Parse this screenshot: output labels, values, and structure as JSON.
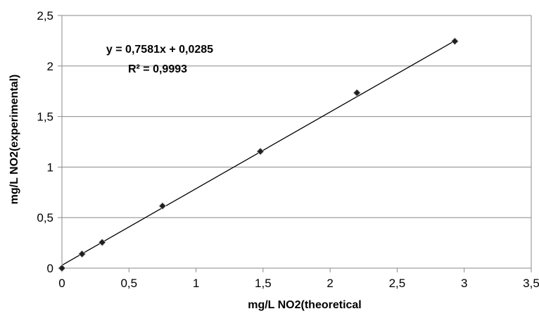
{
  "chart_data": {
    "type": "scatter",
    "title": "",
    "xlabel": "mg/L NO2(theoretical",
    "ylabel": "mg/L NO2(experimental)",
    "xlim": [
      0,
      3.5
    ],
    "ylim": [
      0,
      2.5
    ],
    "x_ticks": [
      0,
      0.5,
      1,
      1.5,
      2,
      2.5,
      3,
      3.5
    ],
    "y_ticks": [
      0,
      0.5,
      1,
      1.5,
      2,
      2.5
    ],
    "x_tick_labels": [
      "0",
      "0,5",
      "1",
      "1,5",
      "2",
      "2,5",
      "3",
      "3,5"
    ],
    "y_tick_labels": [
      "0",
      "0,5",
      "1",
      "1,5",
      "2",
      "2,5"
    ],
    "grid": "horizontal major gridlines",
    "legend": "none",
    "series": [
      {
        "marker": "diamond",
        "color": "#1f1f1f",
        "points": [
          {
            "x": 0,
            "y": 0
          },
          {
            "x": 0.15,
            "y": 0.14
          },
          {
            "x": 0.3,
            "y": 0.255
          },
          {
            "x": 0.75,
            "y": 0.615
          },
          {
            "x": 1.48,
            "y": 1.155
          },
          {
            "x": 2.2,
            "y": 1.735
          },
          {
            "x": 2.93,
            "y": 2.245
          }
        ]
      }
    ],
    "trendline": {
      "slope": 0.7581,
      "intercept": 0.0285,
      "x_start": 0,
      "x_end": 2.93,
      "color": "#000000"
    },
    "annotations": {
      "equation": "y = 0,7581x + 0,0285",
      "r_squared": "R² = 0,9993"
    }
  }
}
